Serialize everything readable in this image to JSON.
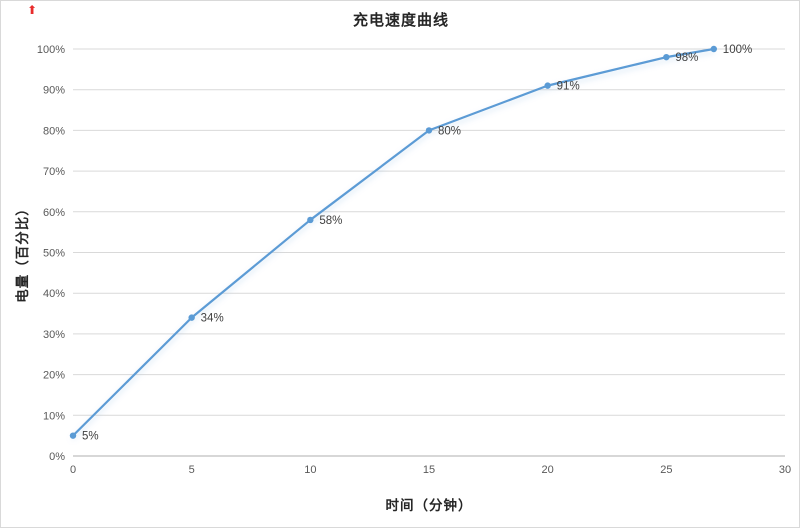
{
  "chart_data": {
    "type": "line",
    "title": "充电速度曲线",
    "xlabel": "时间（分钟）",
    "ylabel": "电量（百分比）",
    "x": [
      0,
      5,
      10,
      15,
      20,
      25,
      27
    ],
    "values": [
      5,
      34,
      58,
      80,
      91,
      98,
      100
    ],
    "point_labels": [
      "5%",
      "34%",
      "58%",
      "80%",
      "91%",
      "98%",
      "100%"
    ],
    "xlim": [
      0,
      30
    ],
    "ylim": [
      0,
      100
    ],
    "x_ticks": [
      0,
      5,
      10,
      15,
      20,
      25,
      30
    ],
    "y_ticks": [
      "0%",
      "10%",
      "20%",
      "30%",
      "40%",
      "50%",
      "60%",
      "70%",
      "80%",
      "90%",
      "100%"
    ],
    "grid": "horizontal",
    "legend": "none",
    "line_color": "#5B9BD5",
    "marker_color": "#5B9BD5",
    "gridline_color": "#D9D9D9",
    "axis_line_color": "#BFBFBF",
    "axis_text_color": "#595959",
    "label_color": "#404040"
  },
  "decor": {
    "corner_icon": "⬆"
  }
}
